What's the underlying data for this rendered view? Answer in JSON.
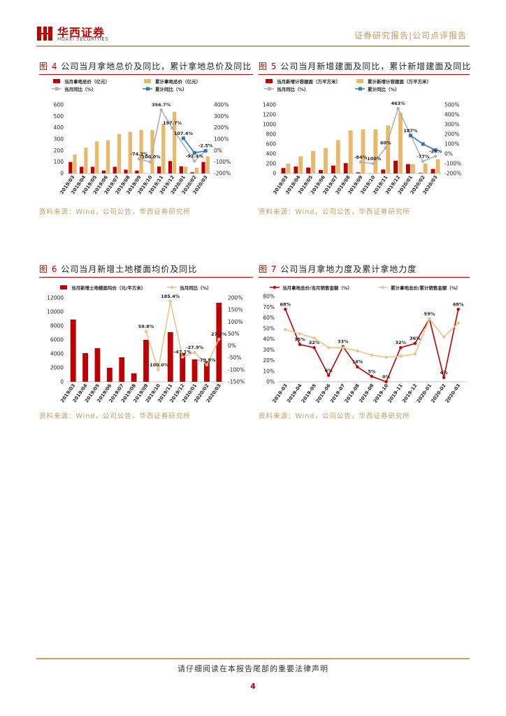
{
  "header": {
    "company_cn": "华西证券",
    "company_en": "HUAXI SECURITIES",
    "report_type": "证券研究报告|公司点评报告"
  },
  "figures": [
    {
      "num": "图 4",
      "title": "公司当月拿地总价及同比，累计拿地总价及同比",
      "source": "资料来源：Wind，公司公告，华西证券研究所"
    },
    {
      "num": "图 5",
      "title": "公司当月新增建面及同比，累计新增建面及同比",
      "source": "资料来源：Wind，公司公告，华西证券研究所"
    },
    {
      "num": "图 6",
      "title": "公司当月新增土地楼面均价及同比",
      "source": "资料来源：Wind，公司公告，华西证券研究所"
    },
    {
      "num": "图 7",
      "title": "公司当月拿地力度及累计拿地力度",
      "source": "资料来源：Wind，公司公告，华西证券研究所"
    }
  ],
  "footer": {
    "disclaimer": "请仔细阅读在本报告尾部的重要法律声明",
    "page": "4"
  },
  "chart_data": [
    {
      "type": "bar",
      "categories": [
        "2019/03",
        "2019/04",
        "2019/05",
        "2019/06",
        "2019/07",
        "2019/08",
        "2019/09",
        "2019/10",
        "2019/11",
        "2019/12",
        "2020/01",
        "2020/02",
        "2020/03"
      ],
      "series": [
        {
          "name": "当月拿地总价（亿元）",
          "type": "bar",
          "axis": "left",
          "color": "#c00000",
          "values": [
            100,
            58,
            58,
            25,
            58,
            33,
            25,
            null,
            60,
            108,
            62,
            10,
            100
          ]
        },
        {
          "name": "累计拿地总价（亿元）",
          "type": "bar",
          "axis": "left",
          "color": "#e8b96a",
          "values": [
            165,
            225,
            280,
            290,
            345,
            365,
            380,
            380,
            435,
            540,
            60,
            50,
            150
          ]
        },
        {
          "name": "当月同比（%）",
          "type": "line",
          "axis": "right",
          "color": "#b0b0b0",
          "values": [
            null,
            null,
            null,
            null,
            null,
            null,
            -74.2,
            -100,
            356.7,
            197.7,
            null,
            -92.4,
            -2.5
          ]
        },
        {
          "name": "累计同比（%）",
          "type": "line",
          "axis": "right",
          "color": "#2e75b6",
          "values": [
            null,
            null,
            null,
            null,
            null,
            null,
            null,
            null,
            null,
            null,
            107.4,
            -20,
            -2.5
          ]
        }
      ],
      "labels": [
        {
          "series": 2,
          "index": 6,
          "text": "-74.2%"
        },
        {
          "series": 2,
          "index": 7,
          "text": "-100.0%"
        },
        {
          "series": 2,
          "index": 8,
          "text": "356.7%"
        },
        {
          "series": 2,
          "index": 9,
          "text": "197.7%"
        },
        {
          "series": 3,
          "index": 10,
          "text": "107.4%"
        },
        {
          "series": 2,
          "index": 11,
          "text": "-92.4%"
        },
        {
          "series": 3,
          "index": 12,
          "text": "-2.5%"
        }
      ],
      "ylim": [
        0,
        600
      ],
      "yticks": [
        0,
        100,
        200,
        300,
        400,
        500,
        600
      ],
      "y2lim": [
        -200,
        400
      ],
      "y2ticks": [
        -200,
        -100,
        0,
        100,
        200,
        300,
        400
      ],
      "y2suffix": "%"
    },
    {
      "type": "bar",
      "categories": [
        "2019/03",
        "2019/04",
        "2019/05",
        "2019/06",
        "2019/07",
        "2019/08",
        "2019/09",
        "2019/10",
        "2019/11",
        "2019/12",
        "2020/01",
        "2020/02",
        "2020/03"
      ],
      "series": [
        {
          "name": "当月新增计容建面（万平方米）",
          "type": "bar",
          "axis": "left",
          "color": "#c00000",
          "values": [
            110,
            140,
            120,
            70,
            160,
            210,
            20,
            null,
            80,
            260,
            190,
            10,
            90
          ]
        },
        {
          "name": "累计新增计容建面（万平方米）",
          "type": "bar",
          "axis": "left",
          "color": "#e8b96a",
          "values": [
            200,
            350,
            460,
            520,
            680,
            880,
            900,
            900,
            980,
            1240,
            190,
            200,
            290
          ]
        },
        {
          "name": "当月同比（%）",
          "type": "line",
          "axis": "right",
          "color": "#b0b0b0",
          "values": [
            null,
            null,
            null,
            null,
            null,
            null,
            -84,
            -100,
            60,
            463,
            null,
            -77,
            -25
          ]
        },
        {
          "name": "累计同比（%）",
          "type": "line",
          "axis": "right",
          "color": "#2e75b6",
          "values": [
            null,
            null,
            null,
            null,
            null,
            null,
            null,
            null,
            null,
            null,
            187,
            100,
            38
          ]
        }
      ],
      "labels": [
        {
          "series": 2,
          "index": 6,
          "text": "-84%"
        },
        {
          "series": 2,
          "index": 7,
          "text": "-100%"
        },
        {
          "series": 2,
          "index": 8,
          "text": "60%"
        },
        {
          "series": 2,
          "index": 9,
          "text": "463%"
        },
        {
          "series": 3,
          "index": 10,
          "text": "187%"
        },
        {
          "series": 2,
          "index": 11,
          "text": "-77%"
        },
        {
          "series": 2,
          "index": 12,
          "text": "-25%"
        }
      ],
      "ylim": [
        0,
        1400
      ],
      "yticks": [
        0,
        200,
        400,
        600,
        800,
        1000,
        1200,
        1400
      ],
      "y2lim": [
        -200,
        500
      ],
      "y2ticks": [
        -200,
        -100,
        0,
        100,
        200,
        300,
        400,
        500
      ],
      "y2suffix": "%"
    },
    {
      "type": "bar",
      "categories": [
        "2019/03",
        "2019/04",
        "2019/05",
        "2019/06",
        "2019/07",
        "2019/08",
        "2019/09",
        "2019/10",
        "2019/11",
        "2019/12",
        "2020/01",
        "2020/02",
        "2020/03"
      ],
      "series": [
        {
          "name": "当月新增土地楼面均价（元/平方米）",
          "type": "bar",
          "axis": "left",
          "color": "#c00000",
          "values": [
            8900,
            4100,
            4800,
            2000,
            3500,
            1200,
            6000,
            null,
            7100,
            4100,
            3200,
            2900,
            11300
          ]
        },
        {
          "name": "当月同比（%）",
          "type": "line",
          "axis": "right",
          "color": "#e8c38a",
          "values": [
            null,
            null,
            null,
            null,
            null,
            null,
            59.8,
            -100,
            185.4,
            -47.1,
            -27.9,
            -79.8,
            27.6
          ]
        }
      ],
      "labels": [
        {
          "series": 1,
          "index": 6,
          "text": "59.8%"
        },
        {
          "series": 1,
          "index": 7,
          "text": "-100.0%"
        },
        {
          "series": 1,
          "index": 8,
          "text": "185.4%"
        },
        {
          "series": 1,
          "index": 9,
          "text": "-47.1%"
        },
        {
          "series": 1,
          "index": 10,
          "text": "-27.9%"
        },
        {
          "series": 1,
          "index": 11,
          "text": "-79.8%"
        },
        {
          "series": 1,
          "index": 12,
          "text": "27.6%"
        }
      ],
      "ylim": [
        0,
        12000
      ],
      "yticks": [
        0,
        2000,
        4000,
        6000,
        8000,
        10000,
        12000
      ],
      "y2lim": [
        -150,
        200
      ],
      "y2ticks": [
        -150,
        -100,
        -50,
        0,
        50,
        100,
        150,
        200
      ],
      "y2suffix": "%"
    },
    {
      "type": "line",
      "categories": [
        "2019-03",
        "2019-04",
        "2019-05",
        "2019-06",
        "2019-07",
        "2019-08",
        "2019-09",
        "2019-10",
        "2019-11",
        "2019-12",
        "2020-01",
        "2020-02",
        "2020-03"
      ],
      "series": [
        {
          "name": "当月拿地总价/当月销售金额（%）",
          "type": "line",
          "axis": "left",
          "color": "#c00000",
          "values": [
            68,
            35,
            32,
            6,
            33,
            14,
            5,
            0,
            32,
            36,
            59,
            4,
            68
          ]
        },
        {
          "name": "累计拿地总价/累计销售金额（%）",
          "type": "line",
          "axis": "left",
          "color": "#e8c38a",
          "values": [
            49,
            45,
            41,
            32,
            32,
            29,
            25,
            23,
            24,
            26,
            59,
            42,
            55
          ]
        }
      ],
      "labels": [
        {
          "series": 0,
          "index": 0,
          "text": "68%"
        },
        {
          "series": 0,
          "index": 1,
          "text": "35%"
        },
        {
          "series": 0,
          "index": 2,
          "text": "32%"
        },
        {
          "series": 0,
          "index": 3,
          "text": "6%"
        },
        {
          "series": 0,
          "index": 4,
          "text": "33%"
        },
        {
          "series": 0,
          "index": 5,
          "text": "14%"
        },
        {
          "series": 0,
          "index": 6,
          "text": "5%"
        },
        {
          "series": 0,
          "index": 7,
          "text": "0%"
        },
        {
          "series": 0,
          "index": 8,
          "text": "32%"
        },
        {
          "series": 0,
          "index": 9,
          "text": "36%"
        },
        {
          "series": 0,
          "index": 10,
          "text": "59%"
        },
        {
          "series": 0,
          "index": 11,
          "text": "4%"
        },
        {
          "series": 0,
          "index": 12,
          "text": "68%"
        }
      ],
      "ylim": [
        0,
        80
      ],
      "yticks": [
        0,
        10,
        20,
        30,
        40,
        50,
        60,
        70,
        80
      ],
      "ysuffix": "%"
    }
  ]
}
